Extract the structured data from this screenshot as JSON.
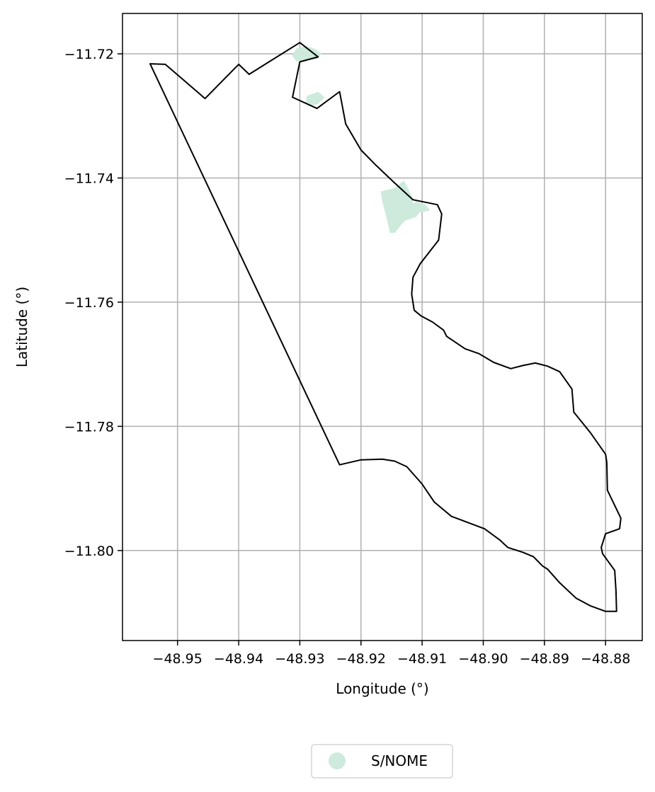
{
  "chart_data": {
    "type": "map",
    "xlabel": "Longitude (°)",
    "ylabel": "Latitude (°)",
    "xlim": [
      -48.959,
      -48.874
    ],
    "ylim": [
      -11.8145,
      -11.7135
    ],
    "grid": true,
    "x_ticks": [
      -48.95,
      -48.94,
      -48.93,
      -48.92,
      -48.91,
      -48.9,
      -48.89,
      -48.88
    ],
    "x_tick_labels": [
      "−48.95",
      "−48.94",
      "−48.93",
      "−48.92",
      "−48.91",
      "−48.90",
      "−48.89",
      "−48.88"
    ],
    "y_ticks": [
      -11.72,
      -11.74,
      -11.76,
      -11.78,
      -11.8
    ],
    "y_tick_labels": [
      "−11.72",
      "−11.74",
      "−11.76",
      "−11.78",
      "−11.80"
    ],
    "boundary_color": "#000000",
    "fill_color": "#cdeadc",
    "legend": {
      "placement": "bottom-center",
      "entries": [
        {
          "label": "S/NOME",
          "color": "#cdeadc"
        }
      ]
    },
    "boundary": [
      [
        -48.9545,
        -11.7216
      ],
      [
        -48.952,
        -11.7217
      ],
      [
        -48.9455,
        -11.7272
      ],
      [
        -48.94,
        -11.7217
      ],
      [
        -48.9383,
        -11.7233
      ],
      [
        -48.93,
        -11.7182
      ],
      [
        -48.927,
        -11.7205
      ],
      [
        -48.93,
        -11.7213
      ],
      [
        -48.9312,
        -11.727
      ],
      [
        -48.9272,
        -11.7288
      ],
      [
        -48.9235,
        -11.7261
      ],
      [
        -48.9225,
        -11.7313
      ],
      [
        -48.92,
        -11.7355
      ],
      [
        -48.9175,
        -11.738
      ],
      [
        -48.9145,
        -11.7408
      ],
      [
        -48.9115,
        -11.7435
      ],
      [
        -48.9075,
        -11.7443
      ],
      [
        -48.9068,
        -11.7458
      ],
      [
        -48.9073,
        -11.75
      ],
      [
        -48.9103,
        -11.7538
      ],
      [
        -48.9115,
        -11.756
      ],
      [
        -48.9117,
        -11.7587
      ],
      [
        -48.9113,
        -11.7613
      ],
      [
        -48.9102,
        -11.7622
      ],
      [
        -48.9083,
        -11.7632
      ],
      [
        -48.9065,
        -11.7645
      ],
      [
        -48.906,
        -11.7655
      ],
      [
        -48.903,
        -11.7675
      ],
      [
        -48.9007,
        -11.7683
      ],
      [
        -48.8983,
        -11.7697
      ],
      [
        -48.8955,
        -11.7707
      ],
      [
        -48.8935,
        -11.7702
      ],
      [
        -48.8915,
        -11.7698
      ],
      [
        -48.8895,
        -11.7703
      ],
      [
        -48.8875,
        -11.7712
      ],
      [
        -48.8855,
        -11.774
      ],
      [
        -48.8852,
        -11.7777
      ],
      [
        -48.8825,
        -11.781
      ],
      [
        -48.88,
        -11.7845
      ],
      [
        -48.8798,
        -11.7858
      ],
      [
        -48.8797,
        -11.7903
      ],
      [
        -48.8775,
        -11.7948
      ],
      [
        -48.8777,
        -11.7965
      ],
      [
        -48.88,
        -11.7973
      ],
      [
        -48.8807,
        -11.7995
      ],
      [
        -48.8805,
        -11.8005
      ],
      [
        -48.8785,
        -11.8032
      ],
      [
        -48.8783,
        -11.8065
      ],
      [
        -48.8782,
        -11.8098
      ],
      [
        -48.88,
        -11.8098
      ],
      [
        -48.8825,
        -11.8089
      ],
      [
        -48.8848,
        -11.8077
      ],
      [
        -48.8875,
        -11.8052
      ],
      [
        -48.8895,
        -11.803
      ],
      [
        -48.8903,
        -11.8025
      ],
      [
        -48.8918,
        -11.801
      ],
      [
        -48.8935,
        -11.8003
      ],
      [
        -48.896,
        -11.7995
      ],
      [
        -48.8973,
        -11.7983
      ],
      [
        -48.8998,
        -11.7965
      ],
      [
        -48.9025,
        -11.7955
      ],
      [
        -48.9052,
        -11.7945
      ],
      [
        -48.908,
        -11.7922
      ],
      [
        -48.91,
        -11.7893
      ],
      [
        -48.9125,
        -11.7865
      ],
      [
        -48.9145,
        -11.7856
      ],
      [
        -48.9165,
        -11.7853
      ],
      [
        -48.92,
        -11.7854
      ],
      [
        -48.9235,
        -11.7862
      ]
    ],
    "regions": [
      [
        [
          -48.9312,
          -11.7203
        ],
        [
          -48.9305,
          -11.7192
        ],
        [
          -48.929,
          -11.7188
        ],
        [
          -48.9275,
          -11.7193
        ],
        [
          -48.9265,
          -11.72
        ],
        [
          -48.9272,
          -11.7208
        ],
        [
          -48.9292,
          -11.721
        ],
        [
          -48.9305,
          -11.7212
        ]
      ],
      [
        [
          -48.9288,
          -11.7268
        ],
        [
          -48.927,
          -11.7262
        ],
        [
          -48.926,
          -11.727
        ],
        [
          -48.927,
          -11.728
        ],
        [
          -48.9285,
          -11.7284
        ],
        [
          -48.929,
          -11.7278
        ]
      ],
      [
        [
          -48.9167,
          -11.7422
        ],
        [
          -48.9145,
          -11.7417
        ],
        [
          -48.913,
          -11.7405
        ],
        [
          -48.9118,
          -11.7428
        ],
        [
          -48.9115,
          -11.7443
        ],
        [
          -48.911,
          -11.7438
        ],
        [
          -48.9095,
          -11.7443
        ],
        [
          -48.9088,
          -11.7452
        ],
        [
          -48.9105,
          -11.7455
        ],
        [
          -48.911,
          -11.7462
        ],
        [
          -48.9118,
          -11.7465
        ],
        [
          -48.9128,
          -11.7468
        ],
        [
          -48.9135,
          -11.7475
        ],
        [
          -48.914,
          -11.7482
        ],
        [
          -48.9145,
          -11.7488
        ],
        [
          -48.9152,
          -11.7488
        ],
        [
          -48.9155,
          -11.7475
        ],
        [
          -48.9158,
          -11.7462
        ],
        [
          -48.9162,
          -11.7448
        ],
        [
          -48.9165,
          -11.7435
        ]
      ]
    ]
  }
}
